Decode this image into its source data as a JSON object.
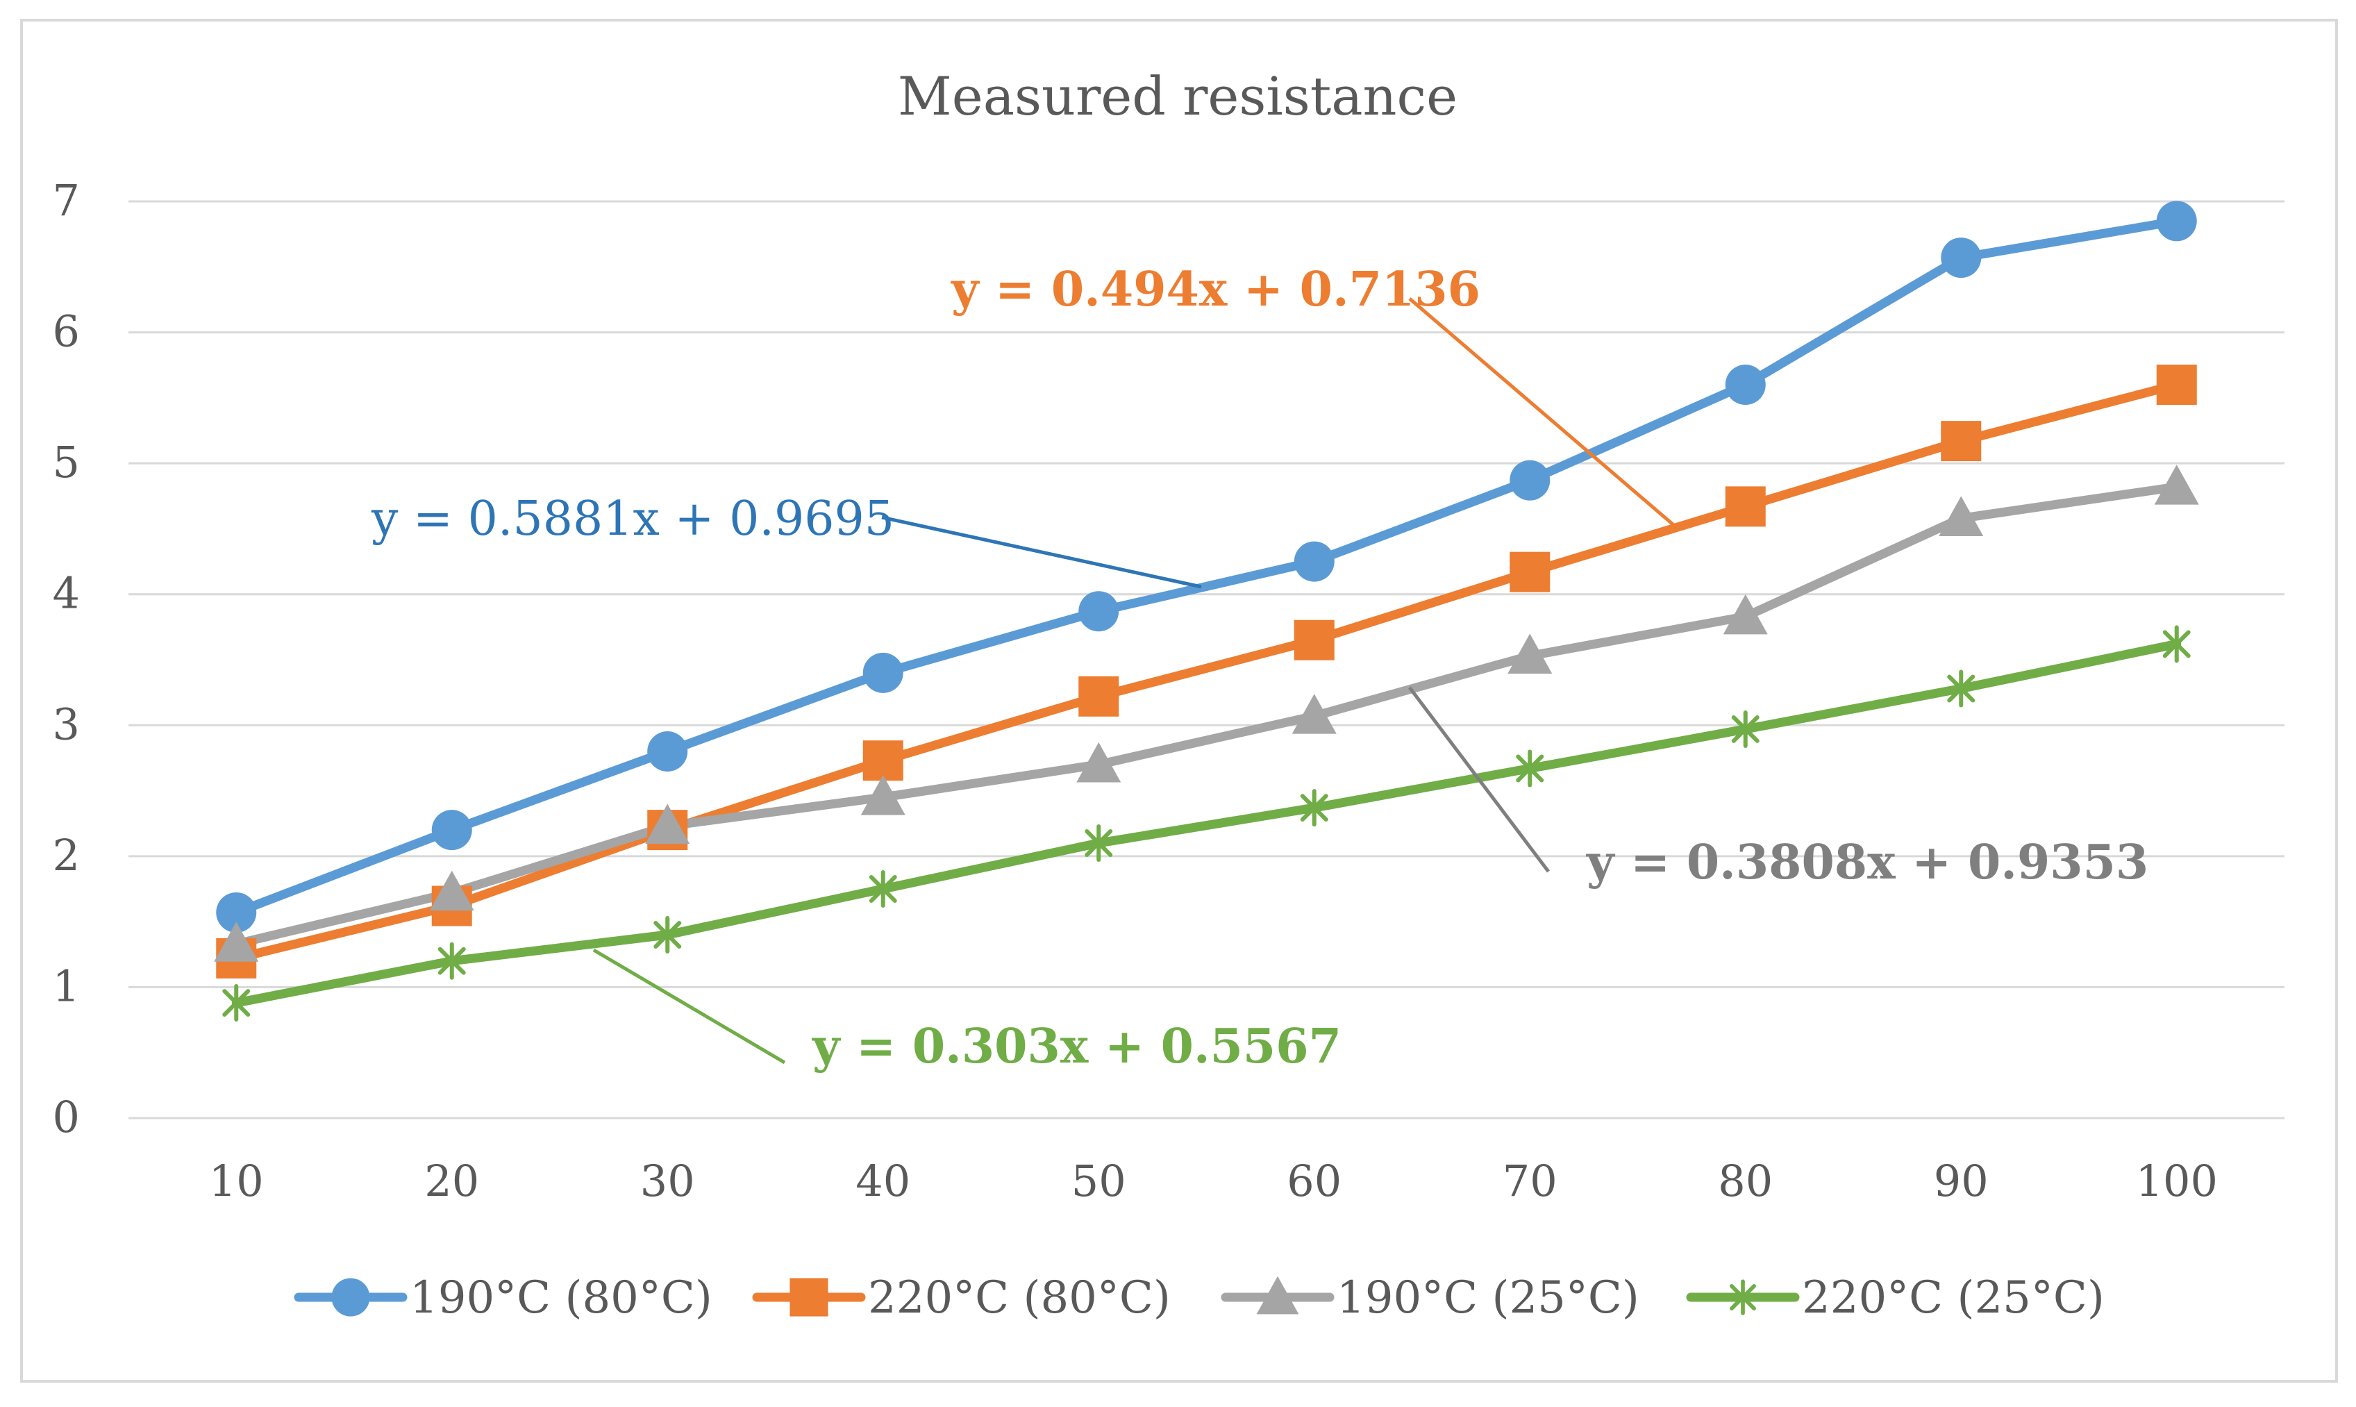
{
  "chart_data": {
    "type": "line",
    "title": "Measured resistance",
    "xlabel": "",
    "ylabel": "",
    "categories": [
      "10",
      "20",
      "30",
      "40",
      "50",
      "60",
      "70",
      "80",
      "90",
      "100"
    ],
    "yticks": [
      "0",
      "1",
      "2",
      "3",
      "4",
      "5",
      "6",
      "7"
    ],
    "ylim": [
      0,
      7
    ],
    "grid": true,
    "legend_position": "bottom",
    "series": [
      {
        "name": "190°C (80°C)",
        "marker": "circle",
        "color": "#5B9BD5",
        "values": [
          1.57,
          2.2,
          2.8,
          3.4,
          3.87,
          4.25,
          4.87,
          5.6,
          6.57,
          6.85
        ]
      },
      {
        "name": "220°C (80°C)",
        "marker": "square",
        "color": "#ED7D31",
        "values": [
          1.22,
          1.62,
          2.2,
          2.73,
          3.22,
          3.65,
          4.17,
          4.67,
          5.17,
          5.6
        ]
      },
      {
        "name": "190°C (25°C)",
        "marker": "triangle",
        "color": "#A5A5A5",
        "values": [
          1.33,
          1.72,
          2.23,
          2.45,
          2.7,
          3.07,
          3.53,
          3.83,
          4.58,
          4.82
        ]
      },
      {
        "name": "220°C (25°C)",
        "marker": "asterisk",
        "color": "#70AD47",
        "values": [
          0.88,
          1.2,
          1.4,
          1.75,
          2.1,
          2.37,
          2.67,
          2.97,
          3.28,
          3.62
        ]
      }
    ],
    "annotations": [
      {
        "text": "y = 0.5881x + 0.9695",
        "series": 0,
        "color": "#2E75B6",
        "bold": false
      },
      {
        "text": "y = 0.494x + 0.7136",
        "series": 1,
        "color": "#ED7D31",
        "bold": true
      },
      {
        "text": "y = 0.3808x + 0.9353",
        "series": 2,
        "color": "#7F7F7F",
        "bold": true
      },
      {
        "text": "y = 0.303x + 0.5567",
        "series": 3,
        "color": "#70AD47",
        "bold": true
      }
    ]
  }
}
